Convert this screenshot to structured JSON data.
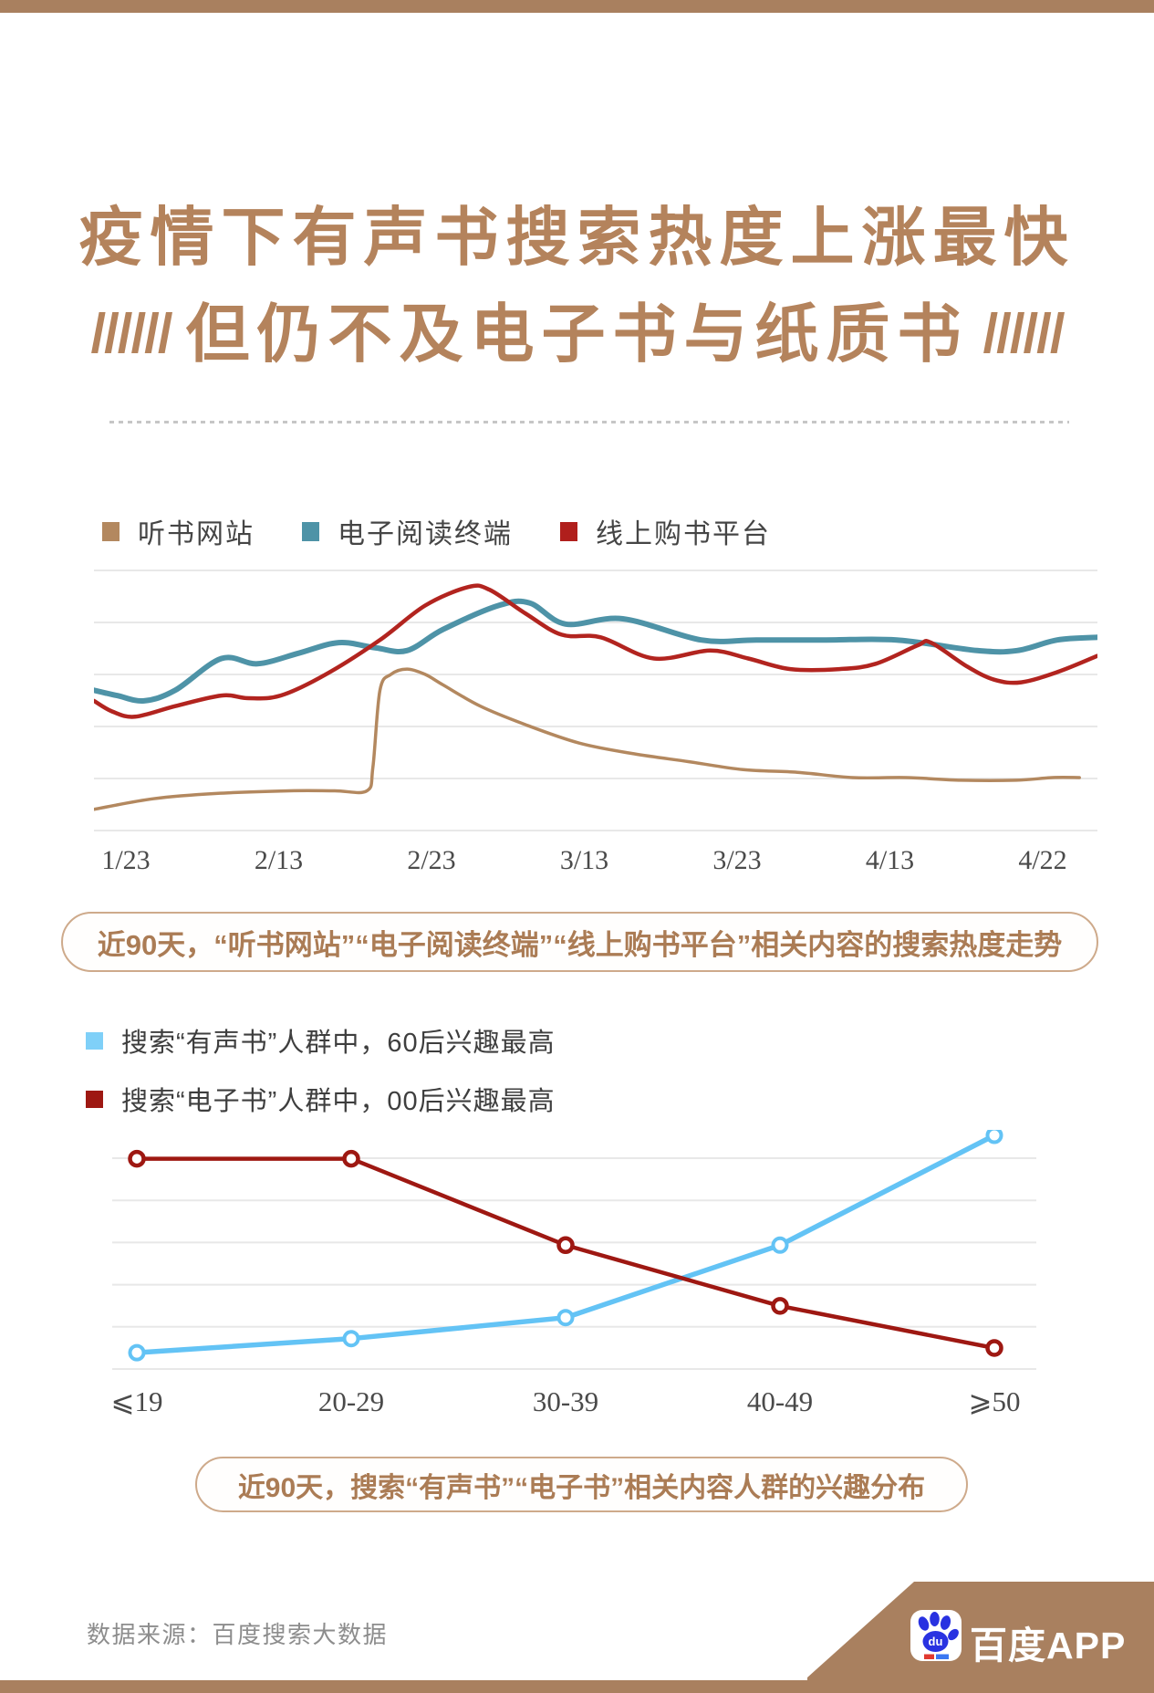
{
  "page": {
    "bg": "#ffffff",
    "accent_brown": "#a9805f",
    "title": {
      "line1": "疫情下有声书搜索热度上涨最快",
      "line2": "但仍不及电子书与纸质书",
      "slashes": "//////",
      "color": "#b4835c"
    },
    "footer": {
      "source": "数据来源：百度搜索大数据"
    },
    "badge": {
      "label": "百度APP",
      "icon_text": "du",
      "bg": "#a9805f",
      "icon_blue": "#2932e1",
      "icon_red": "#e0392f",
      "icon_accent_blue": "#3a77f2"
    }
  },
  "chart1": {
    "legend": [
      {
        "label": "听书网站",
        "color": "#b3885f"
      },
      {
        "label": "电子阅读终端",
        "color": "#4e93a7"
      },
      {
        "label": "线上购书平台",
        "color": "#b01f1c"
      }
    ],
    "caption": "近90天，“听书网站”“电子阅读终端”“线上购书平台”相关内容的搜索热度走势"
  },
  "chart2": {
    "legend": [
      {
        "label": "搜索“有声书”人群中，60后兴趣最高",
        "color": "#7fd0f8"
      },
      {
        "label": "搜索“电子书”人群中，00后兴趣最高",
        "color": "#9e1812"
      }
    ],
    "caption": "近90天，搜索“有声书”“电子书”相关内容人群的兴趣分布"
  },
  "chart_data": [
    {
      "type": "line",
      "id": "search-trend",
      "title": "近90天，“听书网站”“电子阅读终端”“线上购书平台”相关内容的搜索热度走势",
      "x_tick_labels": [
        "1/23",
        "2/13",
        "2/23",
        "3/13",
        "3/23",
        "4/13",
        "4/22"
      ],
      "ylim": [
        0,
        105
      ],
      "grid": {
        "horizontal_lines": 6,
        "color": "#e8e8e8"
      },
      "legend_position": "top",
      "axis_label_color": "#4a4a4a",
      "series": [
        {
          "name": "听书网站",
          "color": "#b3885f",
          "line_width": 3.5,
          "values_at_ticks": [
            10,
            15,
            58,
            33,
            23,
            20,
            20
          ],
          "points": [
            [
              0,
              8
            ],
            [
              59,
              12
            ],
            [
              122,
              14
            ],
            [
              195,
              15
            ],
            [
              240,
              15
            ],
            [
              272,
              15
            ],
            [
              278,
              24
            ],
            [
              285,
              53
            ],
            [
              296,
              59
            ],
            [
              312,
              61
            ],
            [
              330,
              59
            ],
            [
              348,
              55
            ],
            [
              385,
              47
            ],
            [
              430,
              40
            ],
            [
              484,
              33
            ],
            [
              538,
              29
            ],
            [
              593,
              26
            ],
            [
              647,
              23
            ],
            [
              701,
              22
            ],
            [
              756,
              20
            ],
            [
              810,
              20
            ],
            [
              864,
              19
            ],
            [
              919,
              19
            ],
            [
              955,
              20
            ],
            [
              982,
              20
            ]
          ]
        },
        {
          "name": "电子阅读终端",
          "color": "#4e93a7",
          "line_width": 6,
          "values_at_ticks": [
            50,
            66,
            74,
            79,
            72,
            72,
            71
          ],
          "points": [
            [
              0,
              53
            ],
            [
              23,
              51
            ],
            [
              50,
              49
            ],
            [
              81,
              53
            ],
            [
              127,
              65
            ],
            [
              163,
              63
            ],
            [
              204,
              67
            ],
            [
              244,
              71
            ],
            [
              281,
              69
            ],
            [
              312,
              68
            ],
            [
              348,
              76
            ],
            [
              403,
              85
            ],
            [
              434,
              86
            ],
            [
              470,
              78
            ],
            [
              527,
              80
            ],
            [
              605,
              72
            ],
            [
              660,
              72
            ],
            [
              730,
              72
            ],
            [
              800,
              72
            ],
            [
              880,
              68
            ],
            [
              920,
              68
            ],
            [
              960,
              72
            ],
            [
              1000,
              73
            ]
          ]
        },
        {
          "name": "线上购书平台",
          "color": "#b2241f",
          "line_width": 4.5,
          "values_at_ticks": [
            46,
            51,
            86,
            73,
            65,
            64,
            57
          ],
          "points": [
            [
              0,
              49
            ],
            [
              18,
              45
            ],
            [
              41,
              43
            ],
            [
              81,
              47
            ],
            [
              127,
              51
            ],
            [
              154,
              50
            ],
            [
              186,
              51
            ],
            [
              231,
              59
            ],
            [
              285,
              72
            ],
            [
              330,
              85
            ],
            [
              373,
              92
            ],
            [
              394,
              91
            ],
            [
              430,
              82
            ],
            [
              466,
              74
            ],
            [
              505,
              73
            ],
            [
              558,
              65
            ],
            [
              614,
              68
            ],
            [
              652,
              65
            ],
            [
              694,
              61
            ],
            [
              743,
              61
            ],
            [
              779,
              63
            ],
            [
              821,
              70
            ],
            [
              834,
              71
            ],
            [
              870,
              62
            ],
            [
              897,
              57
            ],
            [
              924,
              56
            ],
            [
              961,
              60
            ],
            [
              1000,
              66
            ]
          ]
        }
      ]
    },
    {
      "type": "line",
      "id": "age-interest",
      "title": "近90天，搜索“有声书”“电子书”相关内容人群的兴趣分布",
      "categories": [
        "⩽19",
        "20-29",
        "30-39",
        "40-49",
        "⩾50"
      ],
      "ylim": [
        0,
        107
      ],
      "grid": {
        "horizontal_lines": 6,
        "color": "#e8e8e8"
      },
      "marker": "open-circle",
      "axis_label_color": "#4a4a4a",
      "series": [
        {
          "name": "搜索“有声书”人群（60后兴趣最高）",
          "color": "#63c3f5",
          "line_width": 5.5,
          "marker_stroke": 4,
          "values": [
            7,
            13,
            22,
            53,
            100
          ]
        },
        {
          "name": "搜索“电子书”人群（00后兴趣最高）",
          "color": "#9e1812",
          "line_width": 4.5,
          "marker_stroke": 4.5,
          "values": [
            90,
            90,
            53,
            27,
            9
          ]
        }
      ]
    }
  ]
}
